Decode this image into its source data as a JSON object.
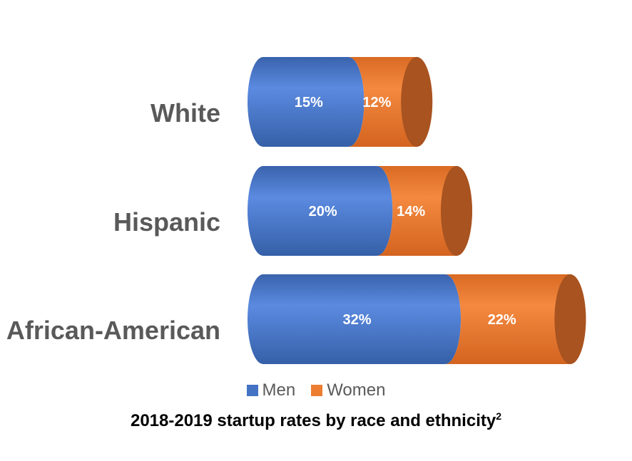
{
  "chart_data": {
    "type": "bar",
    "orientation": "horizontal-stacked-cylinder",
    "categories": [
      "White",
      "Hispanic",
      "African-American"
    ],
    "series": [
      {
        "name": "Men",
        "values": [
          15,
          20,
          32
        ],
        "labels": [
          "15%",
          "20%",
          "32%"
        ],
        "color": "#4472C4"
      },
      {
        "name": "Women",
        "values": [
          12,
          14,
          22
        ],
        "labels": [
          "12%",
          "14%",
          "22%"
        ],
        "color": "#ED7D31"
      }
    ],
    "legend_position": "bottom",
    "grid": false
  },
  "caption": {
    "text": "2018-2019 startup rates by race and ethnicity",
    "superscript": "2"
  }
}
